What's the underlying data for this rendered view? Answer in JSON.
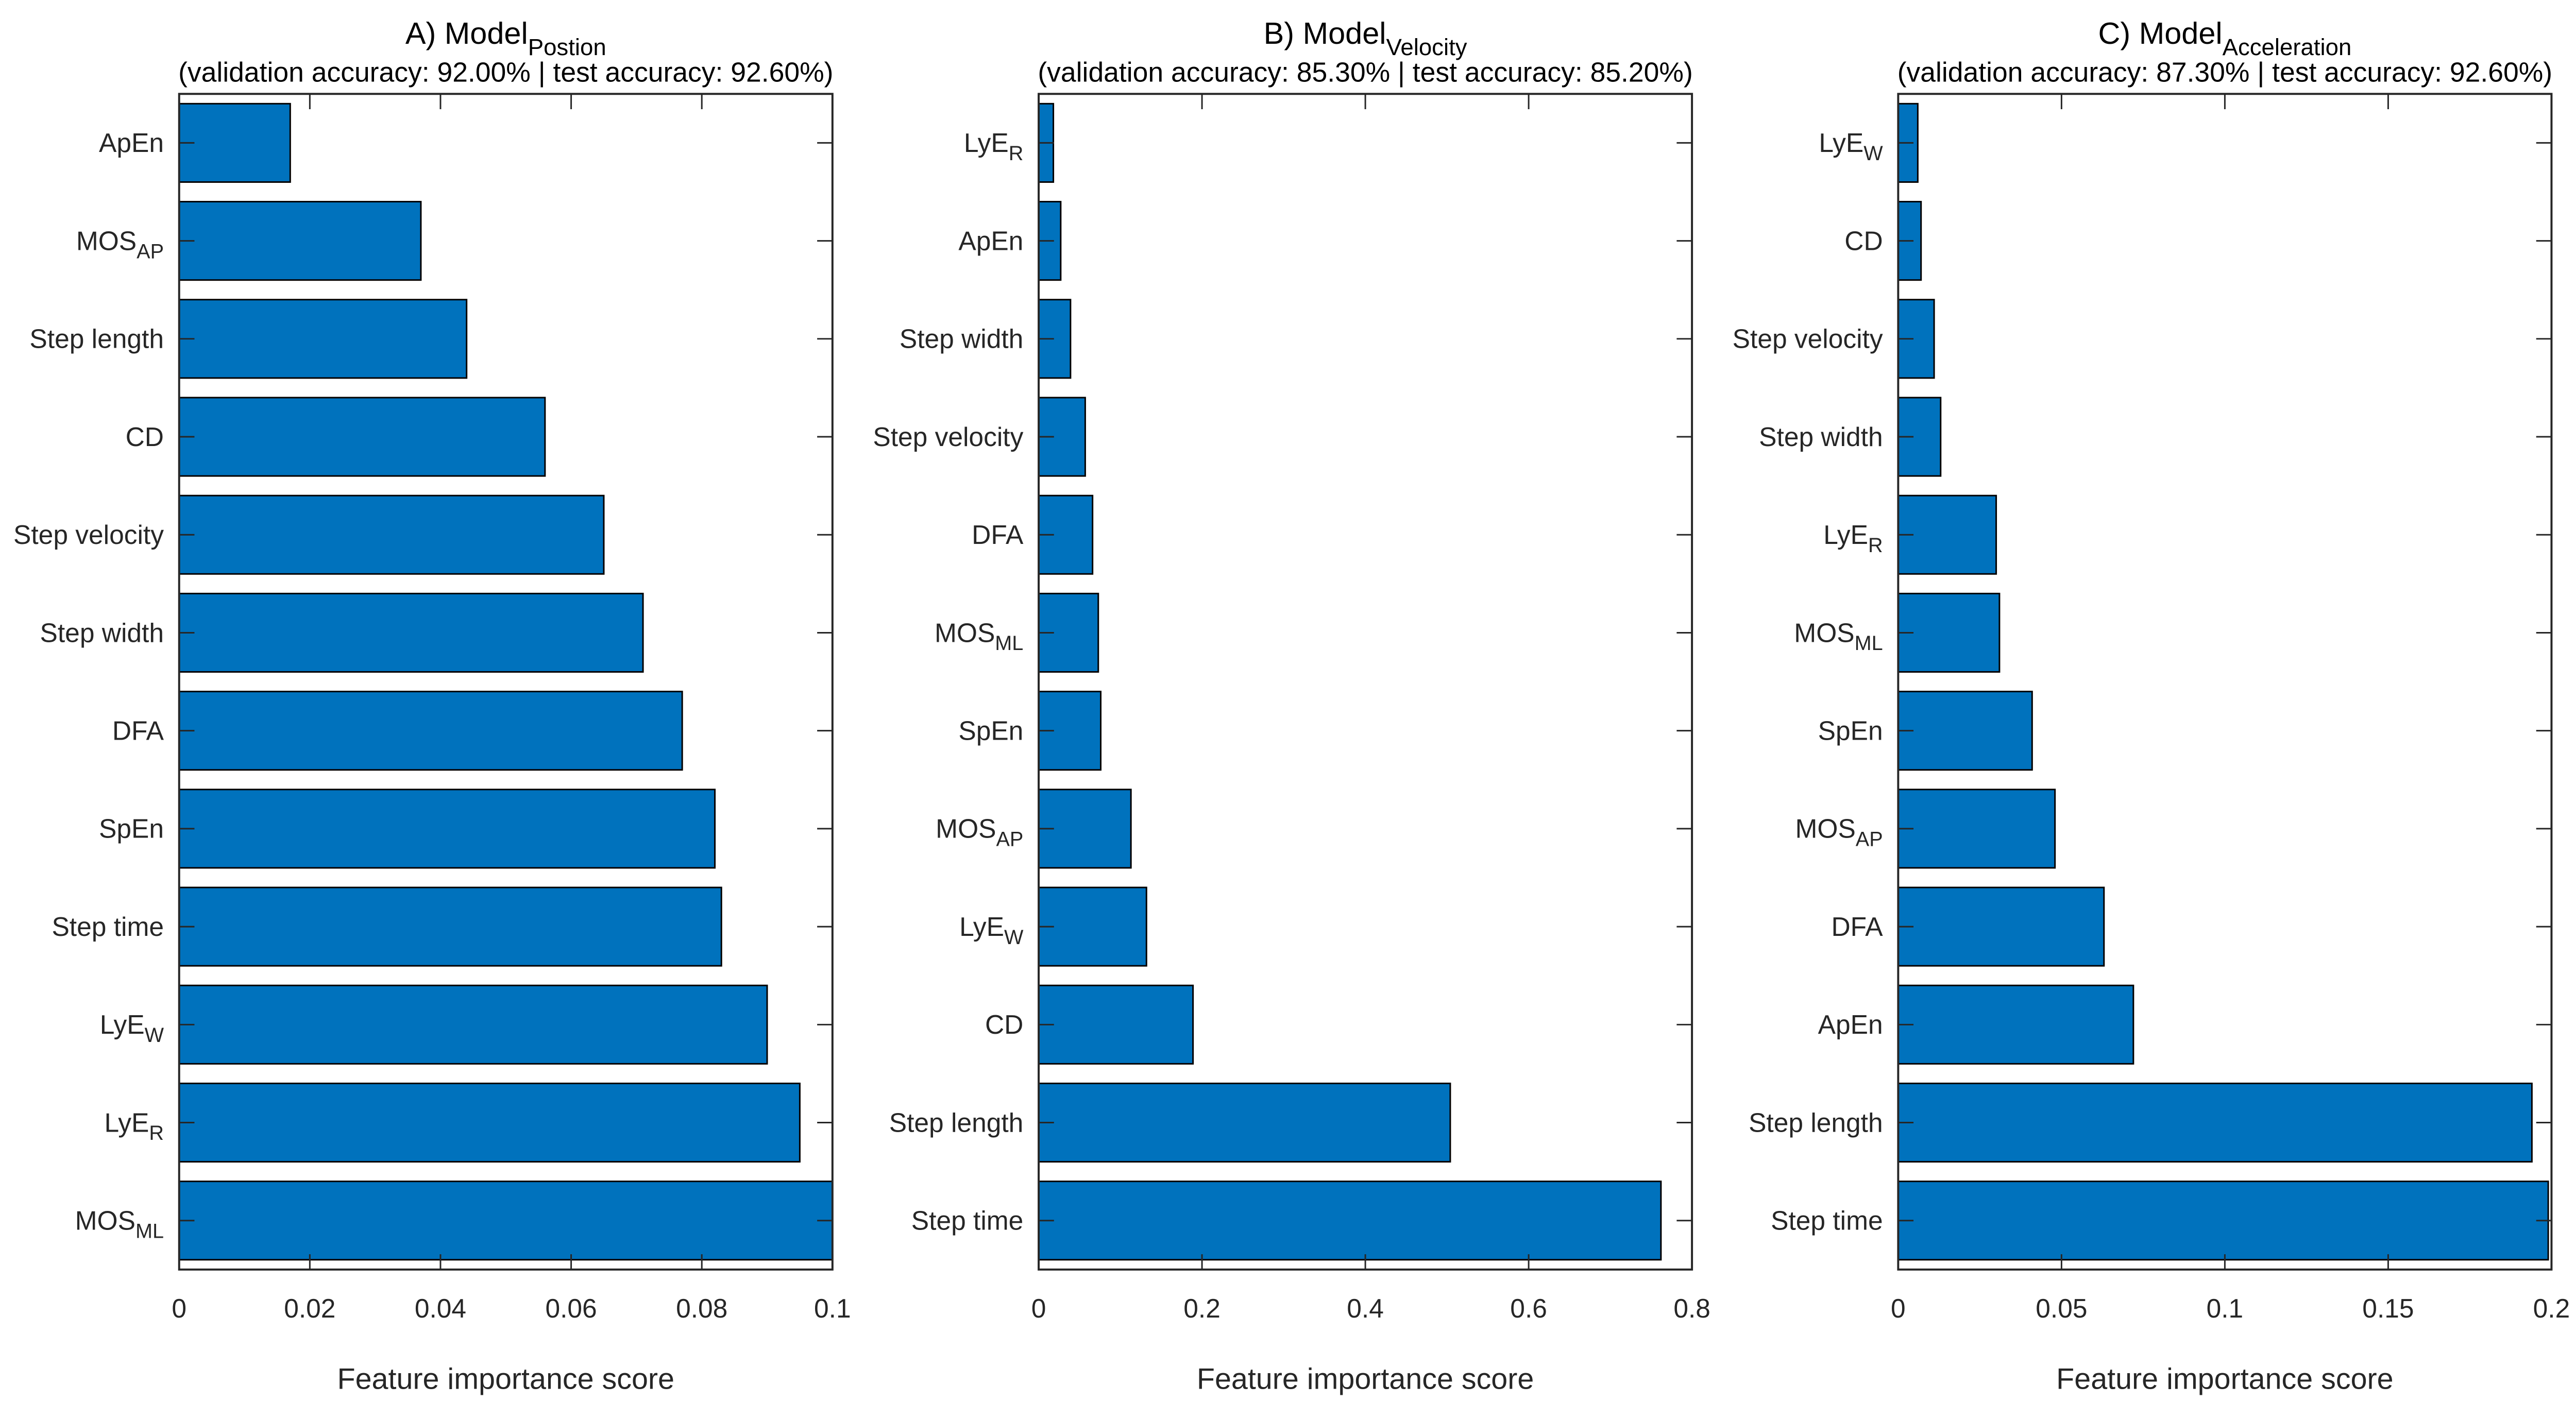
{
  "style": {
    "background": "#FFFFFF",
    "bar_fill": "#0072BD",
    "bar_edge": "#000000",
    "axis_color": "#262626",
    "text_color": "#000000"
  },
  "shared": {
    "xlabel": "Feature importance score"
  },
  "chart_data": [
    {
      "type": "bar",
      "orientation": "horizontal",
      "panel": "A",
      "title": "A) Model",
      "title_subscript": "Postion",
      "subtitle": "(validation accuracy: 92.00% | test accuracy: 92.60%)",
      "xlabel": "Feature importance score",
      "xlim": [
        0,
        0.1
      ],
      "xticks": [
        "0",
        "0.02",
        "0.04",
        "0.06",
        "0.08",
        "0.1"
      ],
      "grid": false,
      "legend": null,
      "categories_top_to_bottom": [
        "ApEn",
        "MOS_AP",
        "Step length",
        "CD",
        "Step velocity",
        "Step width",
        "DFA",
        "SpEn",
        "Step time",
        "LyE_W",
        "LyE_R",
        "MOS_ML"
      ],
      "values": [
        0.017,
        0.037,
        0.044,
        0.056,
        0.065,
        0.071,
        0.077,
        0.082,
        0.083,
        0.09,
        0.095,
        0.1
      ]
    },
    {
      "type": "bar",
      "orientation": "horizontal",
      "panel": "B",
      "title": "B) Model",
      "title_subscript": "Velocity",
      "subtitle": "(validation accuracy: 85.30% | test accuracy: 85.20%)",
      "xlabel": "Feature importance score",
      "xlim": [
        0,
        0.8
      ],
      "xticks": [
        "0",
        "0.2",
        "0.4",
        "0.6",
        "0.8"
      ],
      "grid": false,
      "legend": null,
      "categories_top_to_bottom": [
        "LyE_R",
        "ApEn",
        "Step width",
        "Step velocity",
        "DFA",
        "MOS_ML",
        "SpEn",
        "MOS_AP",
        "LyE_W",
        "CD",
        "Step length",
        "Step time"
      ],
      "values": [
        0.018,
        0.027,
        0.039,
        0.057,
        0.066,
        0.073,
        0.076,
        0.113,
        0.132,
        0.189,
        0.504,
        0.762
      ]
    },
    {
      "type": "bar",
      "orientation": "horizontal",
      "panel": "C",
      "title": "C) Model",
      "title_subscript": "Acceleration",
      "subtitle": "(validation accuracy: 87.30% | test accuracy: 92.60%)",
      "xlabel": "Feature importance score",
      "xlim": [
        0,
        0.2
      ],
      "xticks": [
        "0",
        "0.05",
        "0.1",
        "0.15",
        "0.2"
      ],
      "grid": false,
      "legend": null,
      "categories_top_to_bottom": [
        "LyE_W",
        "CD",
        "Step velocity",
        "Step width",
        "LyE_R",
        "MOS_ML",
        "SpEn",
        "MOS_AP",
        "DFA",
        "ApEn",
        "Step length",
        "Step time"
      ],
      "values": [
        0.006,
        0.007,
        0.011,
        0.013,
        0.03,
        0.031,
        0.041,
        0.048,
        0.063,
        0.072,
        0.194,
        0.199
      ]
    }
  ]
}
